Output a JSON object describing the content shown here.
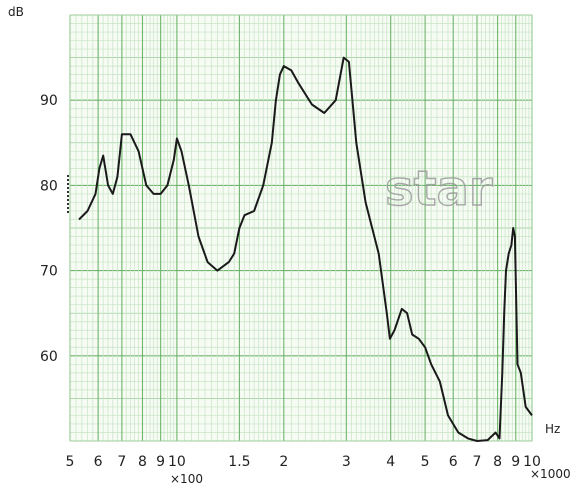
{
  "chart_data": {
    "type": "line",
    "title": "",
    "ylabel": "dB",
    "xlabel": "Hz",
    "y_unit": "dB",
    "x_unit": "Hz",
    "x_scale": "log",
    "xlim": [
      500,
      10000
    ],
    "ylim": [
      50,
      100
    ],
    "grid": true,
    "y_ticks": [
      {
        "value": 60,
        "label": "60"
      },
      {
        "value": 70,
        "label": "70"
      },
      {
        "value": 80,
        "label": "80"
      },
      {
        "value": 90,
        "label": "90"
      }
    ],
    "x_ticks": [
      {
        "value": 500,
        "label": "5"
      },
      {
        "value": 600,
        "label": "6"
      },
      {
        "value": 700,
        "label": "7"
      },
      {
        "value": 800,
        "label": "8"
      },
      {
        "value": 900,
        "label": "9"
      },
      {
        "value": 1000,
        "label": "10"
      },
      {
        "value": 1500,
        "label": "1.5"
      },
      {
        "value": 2000,
        "label": "2"
      },
      {
        "value": 3000,
        "label": "3"
      },
      {
        "value": 4000,
        "label": "4"
      },
      {
        "value": 5000,
        "label": "5"
      },
      {
        "value": 6000,
        "label": "6"
      },
      {
        "value": 7000,
        "label": "7"
      },
      {
        "value": 8000,
        "label": "8"
      },
      {
        "value": 9000,
        "label": "9"
      },
      {
        "value": 10000,
        "label": "10"
      }
    ],
    "x_multiplier_labels": {
      "hundreds": "×100",
      "thousands": "×1000"
    },
    "watermark": "star",
    "series": [
      {
        "x": [
          530,
          560,
          590,
          605,
          620,
          640,
          660,
          680,
          700,
          740,
          780,
          820,
          860,
          900,
          940,
          980,
          1000,
          1030,
          1080,
          1150,
          1220,
          1300,
          1400,
          1450,
          1500,
          1550,
          1650,
          1750,
          1850,
          1900,
          1950,
          2000,
          2100,
          2200,
          2400,
          2600,
          2800,
          2950,
          3050,
          3200,
          3400,
          3700,
          3900,
          3980,
          4100,
          4300,
          4450,
          4600,
          4800,
          5000,
          5200,
          5500,
          5800,
          6200,
          6600,
          7000,
          7500,
          7900,
          8100,
          8250,
          8350,
          8450,
          8600,
          8750,
          8850,
          8950,
          9100,
          9300,
          9600,
          10000
        ],
        "values": [
          76,
          77,
          79,
          82,
          83.5,
          80,
          79,
          81,
          86,
          86,
          84,
          80,
          79,
          79,
          80,
          83,
          85.5,
          84,
          80,
          74,
          71,
          70,
          71,
          72,
          75,
          76.5,
          77,
          80,
          85,
          90,
          93,
          94,
          93.5,
          92,
          89.5,
          88.5,
          90,
          95,
          94.5,
          85,
          78,
          72,
          65,
          62,
          63,
          65.5,
          65,
          62.5,
          62,
          61,
          59,
          57,
          53,
          51,
          50.3,
          50,
          50.1,
          51,
          50.3,
          58,
          65,
          70,
          72,
          73,
          75,
          74,
          59,
          58,
          54,
          53
        ]
      }
    ]
  }
}
